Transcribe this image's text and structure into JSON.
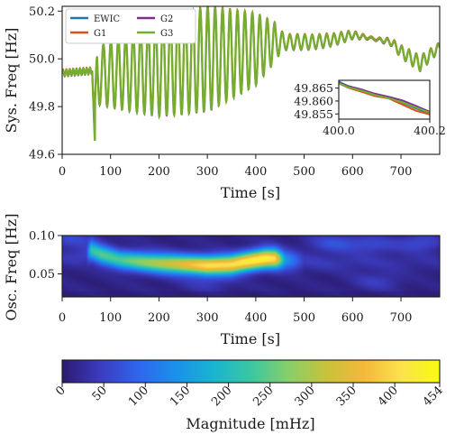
{
  "chart_data": [
    {
      "type": "line",
      "xlabel": "Time [s]",
      "ylabel": "Sys. Freq [Hz]",
      "xlim": [
        0,
        780
      ],
      "ylim": [
        49.6,
        50.22
      ],
      "xticks": [
        0,
        100,
        200,
        300,
        400,
        500,
        600,
        700
      ],
      "yticks": [
        49.6,
        49.8,
        50.0,
        50.2
      ],
      "ytick_labels": [
        "49.6",
        "49.8",
        "50.0",
        "50.2"
      ],
      "grid": false,
      "legend_placement": "top-left",
      "series": [
        {
          "name": "EWIC",
          "color": "#1f77b4"
        },
        {
          "name": "G1",
          "color": "#d95319"
        },
        {
          "name": "G2",
          "color": "#7e2f8e"
        },
        {
          "name": "G3",
          "color": "#77ac30"
        }
      ],
      "envelope": {
        "t": [
          0,
          65,
          67,
          72,
          120,
          200,
          300,
          400,
          440,
          460,
          520,
          560,
          600,
          680,
          700,
          740,
          780
        ],
        "center": [
          49.94,
          49.95,
          49.78,
          49.93,
          49.94,
          49.96,
          50.0,
          50.04,
          50.07,
          50.07,
          50.07,
          50.08,
          50.1,
          50.07,
          50.03,
          49.98,
          50.05
        ],
        "amplitude": [
          0.0,
          0.0,
          0.0,
          0.12,
          0.15,
          0.2,
          0.22,
          0.15,
          0.08,
          0.04,
          0.02,
          0.015,
          0.015,
          0.015,
          0.02,
          0.02,
          0.01
        ]
      },
      "inset": {
        "xlim": [
          400.0,
          400.2
        ],
        "ylim": [
          49.853,
          49.868
        ],
        "xticks": [
          400.0,
          400.2
        ],
        "xtick_labels": [
          "400.0",
          "400.2"
        ],
        "yticks": [
          49.855,
          49.86,
          49.865
        ],
        "ytick_labels": [
          "49.855",
          "49.860",
          "49.865"
        ],
        "series": [
          {
            "name": "EWIC",
            "x": [
              400.0,
              400.02,
              400.05,
              400.08,
              400.11,
              400.14,
              400.17,
              400.2
            ],
            "y": [
              49.8675,
              49.8658,
              49.8645,
              49.8626,
              49.8612,
              49.8594,
              49.8571,
              49.8552
            ]
          },
          {
            "name": "G1",
            "x": [
              400.0,
              400.02,
              400.05,
              400.08,
              400.11,
              400.14,
              400.17,
              400.2
            ],
            "y": [
              49.8668,
              49.8652,
              49.8636,
              49.8619,
              49.861,
              49.8586,
              49.8562,
              49.8548
            ]
          },
          {
            "name": "G2",
            "x": [
              400.0,
              400.02,
              400.05,
              400.08,
              400.11,
              400.14,
              400.17,
              400.2
            ],
            "y": [
              49.8671,
              49.8658,
              49.8644,
              49.8628,
              49.8616,
              49.8602,
              49.8581,
              49.8558
            ]
          },
          {
            "name": "G3",
            "x": [
              400.0,
              400.02,
              400.05,
              400.08,
              400.11,
              400.14,
              400.17,
              400.2
            ],
            "y": [
              49.8669,
              49.8654,
              49.864,
              49.8623,
              49.8611,
              49.8595,
              49.8575,
              49.8554
            ]
          }
        ]
      }
    },
    {
      "type": "heatmap",
      "xlabel": "Time [s]",
      "ylabel": "Osc. Freq [Hz]",
      "xlim": [
        0,
        780
      ],
      "ylim": [
        0.02,
        0.1
      ],
      "xticks": [
        0,
        100,
        200,
        300,
        400,
        500,
        600,
        700
      ],
      "yticks": [
        0.05,
        0.1
      ],
      "ytick_labels": [
        "0.05",
        "0.10"
      ],
      "ridge": {
        "t": [
          0,
          50,
          60,
          80,
          120,
          160,
          200,
          250,
          300,
          350,
          400,
          420,
          440,
          460,
          500,
          780
        ],
        "freq": [
          0.07,
          0.075,
          0.08,
          0.075,
          0.068,
          0.066,
          0.064,
          0.062,
          0.061,
          0.062,
          0.068,
          0.07,
          0.07,
          0.068,
          0.065,
          0.065
        ],
        "magnitude": [
          20,
          40,
          200,
          230,
          220,
          260,
          300,
          340,
          390,
          400,
          420,
          430,
          400,
          150,
          30,
          15
        ]
      },
      "background_blobs": [
        {
          "t": 20,
          "f": 0.095,
          "mag": 45
        },
        {
          "t": 560,
          "f": 0.09,
          "mag": 55
        },
        {
          "t": 640,
          "f": 0.088,
          "mag": 45
        },
        {
          "t": 740,
          "f": 0.09,
          "mag": 50
        },
        {
          "t": 300,
          "f": 0.038,
          "mag": 30
        },
        {
          "t": 650,
          "f": 0.04,
          "mag": 35
        }
      ]
    },
    {
      "type": "colorbar",
      "label": "Magnitude [mHz]",
      "range": [
        0,
        454
      ],
      "ticks": [
        0,
        50,
        100,
        150,
        200,
        250,
        300,
        350,
        400,
        454
      ],
      "tick_labels": [
        "0",
        "50",
        "100",
        "150",
        "200",
        "250",
        "300",
        "350",
        "400",
        "454"
      ],
      "colormap": [
        "#2b1a70",
        "#3b3bbd",
        "#2f64ee",
        "#1b90ea",
        "#19b4d1",
        "#3bc7a2",
        "#88cf69",
        "#c8c23b",
        "#f5b83a",
        "#fbe34c",
        "#f9fb0e"
      ]
    }
  ]
}
